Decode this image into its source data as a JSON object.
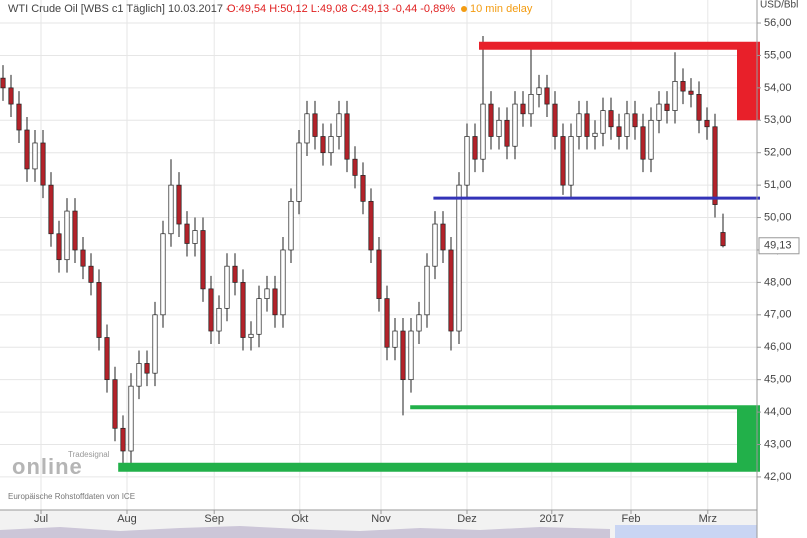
{
  "chart_data": {
    "type": "candlestick",
    "title": "WTI Crude Oil [WBS c1 Täglich] 10.03.2017 -",
    "subtitle": "O:49,54 H:50,12 L:49,08 C:49,13 -0,44 -0,89%",
    "delay": "10 min delay",
    "y_label": "USD/Bbl",
    "watermark": "online",
    "watermark_small": "Tradesignal",
    "source": "Europäische Rohstoffdaten von ICE",
    "up_color": "#ffffff",
    "down_color": "#b3222a",
    "grid": true,
    "categories": [
      null,
      null,
      null,
      null,
      null,
      null,
      null,
      null,
      null,
      null,
      null,
      null,
      null,
      null,
      null,
      null,
      null,
      null,
      null,
      null,
      null,
      null,
      null,
      null,
      null,
      null,
      null,
      null,
      null,
      null,
      null,
      null,
      null,
      null,
      null,
      null,
      null,
      null,
      null,
      null,
      null,
      null,
      null,
      null,
      null,
      null,
      null,
      null,
      null,
      null,
      null,
      null,
      null,
      null,
      null,
      null,
      null,
      null,
      null,
      null,
      null,
      null,
      null,
      null,
      null,
      null,
      null,
      null,
      null,
      null,
      null,
      null,
      null,
      null,
      null,
      null,
      null,
      null,
      null,
      null,
      null,
      null,
      null,
      null,
      null,
      null,
      null,
      null,
      null,
      null,
      null
    ],
    "candles": [
      [
        54.3,
        54.7,
        53.6,
        54.0
      ],
      [
        54.0,
        54.4,
        53.1,
        53.5
      ],
      [
        53.5,
        53.9,
        52.3,
        52.7
      ],
      [
        52.7,
        53.1,
        51.1,
        51.5
      ],
      [
        51.5,
        52.7,
        51.1,
        52.3
      ],
      [
        52.3,
        52.7,
        50.6,
        51.0
      ],
      [
        51.0,
        51.4,
        49.1,
        49.5
      ],
      [
        49.5,
        49.9,
        48.3,
        48.7
      ],
      [
        48.7,
        50.6,
        48.3,
        50.2
      ],
      [
        50.2,
        50.6,
        48.6,
        49.0
      ],
      [
        49.0,
        49.4,
        48.1,
        48.5
      ],
      [
        48.5,
        48.9,
        47.6,
        48.0
      ],
      [
        48.0,
        48.4,
        45.9,
        46.3
      ],
      [
        46.3,
        46.7,
        44.6,
        45.0
      ],
      [
        45.0,
        45.4,
        43.1,
        43.5
      ],
      [
        43.5,
        43.9,
        42.2,
        42.8
      ],
      [
        42.8,
        45.2,
        42.4,
        44.8
      ],
      [
        44.8,
        45.9,
        44.4,
        45.5
      ],
      [
        45.5,
        45.9,
        44.8,
        45.2
      ],
      [
        45.2,
        47.4,
        44.8,
        47.0
      ],
      [
        47.0,
        49.9,
        46.6,
        49.5
      ],
      [
        49.5,
        51.8,
        49.1,
        51.0
      ],
      [
        51.0,
        51.4,
        49.4,
        49.8
      ],
      [
        49.8,
        50.2,
        48.8,
        49.2
      ],
      [
        49.2,
        50.0,
        48.8,
        49.6
      ],
      [
        49.6,
        50.0,
        47.4,
        47.8
      ],
      [
        47.8,
        48.2,
        46.1,
        46.5
      ],
      [
        46.5,
        47.6,
        46.1,
        47.2
      ],
      [
        47.2,
        48.9,
        46.8,
        48.5
      ],
      [
        48.5,
        48.9,
        47.6,
        48.0
      ],
      [
        48.0,
        48.4,
        45.9,
        46.3
      ],
      [
        46.3,
        46.8,
        45.9,
        46.4
      ],
      [
        46.4,
        47.9,
        46.0,
        47.5
      ],
      [
        47.5,
        48.2,
        47.1,
        47.8
      ],
      [
        47.8,
        48.2,
        46.6,
        47.0
      ],
      [
        47.0,
        49.4,
        46.6,
        49.0
      ],
      [
        49.0,
        50.9,
        48.6,
        50.5
      ],
      [
        50.5,
        52.7,
        50.1,
        52.3
      ],
      [
        52.3,
        53.6,
        51.9,
        53.2
      ],
      [
        53.2,
        53.6,
        52.1,
        52.5
      ],
      [
        52.5,
        52.9,
        51.6,
        52.0
      ],
      [
        52.0,
        52.9,
        51.6,
        52.5
      ],
      [
        52.5,
        53.6,
        52.1,
        53.2
      ],
      [
        53.2,
        53.6,
        51.4,
        51.8
      ],
      [
        51.8,
        52.2,
        50.9,
        51.3
      ],
      [
        51.3,
        51.7,
        50.1,
        50.5
      ],
      [
        50.5,
        50.9,
        48.6,
        49.0
      ],
      [
        49.0,
        49.4,
        47.1,
        47.5
      ],
      [
        47.5,
        47.9,
        45.6,
        46.0
      ],
      [
        46.0,
        46.9,
        45.6,
        46.5
      ],
      [
        46.5,
        46.9,
        43.9,
        45.0
      ],
      [
        45.0,
        46.9,
        44.6,
        46.5
      ],
      [
        46.5,
        47.4,
        46.1,
        47.0
      ],
      [
        47.0,
        48.9,
        46.6,
        48.5
      ],
      [
        48.5,
        50.2,
        48.1,
        49.8
      ],
      [
        49.8,
        50.2,
        48.6,
        49.0
      ],
      [
        49.0,
        49.4,
        45.9,
        46.5
      ],
      [
        46.5,
        51.4,
        46.1,
        51.0
      ],
      [
        51.0,
        52.9,
        50.6,
        52.5
      ],
      [
        52.5,
        52.9,
        51.4,
        51.8
      ],
      [
        51.8,
        55.6,
        51.4,
        53.5
      ],
      [
        53.5,
        53.9,
        52.1,
        52.5
      ],
      [
        52.5,
        53.4,
        52.1,
        53.0
      ],
      [
        53.0,
        53.4,
        51.8,
        52.2
      ],
      [
        52.2,
        53.9,
        51.8,
        53.5
      ],
      [
        53.5,
        53.9,
        52.8,
        53.2
      ],
      [
        53.2,
        55.2,
        52.8,
        53.8
      ],
      [
        53.8,
        54.4,
        53.4,
        54.0
      ],
      [
        54.0,
        54.4,
        53.1,
        53.5
      ],
      [
        53.5,
        53.9,
        52.1,
        52.5
      ],
      [
        52.5,
        52.9,
        50.7,
        51.0
      ],
      [
        51.0,
        52.9,
        50.6,
        52.5
      ],
      [
        52.5,
        53.6,
        52.1,
        53.2
      ],
      [
        53.2,
        53.6,
        52.1,
        52.5
      ],
      [
        52.5,
        53.0,
        52.1,
        52.6
      ],
      [
        52.6,
        53.7,
        52.2,
        53.3
      ],
      [
        53.3,
        53.7,
        52.4,
        52.8
      ],
      [
        52.8,
        53.2,
        52.1,
        52.5
      ],
      [
        52.5,
        53.6,
        52.1,
        53.2
      ],
      [
        53.2,
        53.6,
        52.4,
        52.8
      ],
      [
        52.8,
        53.2,
        51.4,
        51.8
      ],
      [
        51.8,
        53.4,
        51.4,
        53.0
      ],
      [
        53.0,
        53.9,
        52.6,
        53.5
      ],
      [
        53.5,
        53.9,
        52.9,
        53.3
      ],
      [
        53.3,
        55.1,
        52.9,
        54.2
      ],
      [
        54.2,
        54.6,
        53.5,
        53.9
      ],
      [
        53.9,
        54.3,
        53.4,
        53.8
      ],
      [
        53.8,
        54.2,
        52.6,
        53.0
      ],
      [
        53.0,
        53.4,
        52.4,
        52.8
      ],
      [
        52.8,
        53.2,
        50.0,
        50.4
      ],
      [
        49.54,
        50.12,
        49.08,
        49.13
      ]
    ],
    "last_label": "49,13",
    "levels": [
      {
        "color": "#e8202a",
        "value": 55.3,
        "from": 59.5,
        "width": 8
      },
      {
        "color": "#3333b8",
        "value": 50.6,
        "from": 53.8,
        "width": 3
      },
      {
        "color": "#22b04a",
        "value": 44.15,
        "from": 50.9,
        "width": 4
      },
      {
        "color": "#22b04a",
        "value": 42.3,
        "from": 14.4,
        "width": 9
      }
    ],
    "boxes": [
      {
        "color": "#e8202a",
        "values": [
          55.3,
          53.0
        ]
      },
      {
        "color": "#22b04a",
        "values": [
          44.15,
          42.3
        ]
      }
    ],
    "xlim": [
      -0.375,
      94
    ],
    "xticks": [
      {
        "value": 4.75,
        "label": "Jul"
      },
      {
        "value": 15.5,
        "label": "Aug"
      },
      {
        "value": 26.4,
        "label": "Sep"
      },
      {
        "value": 37.1,
        "label": "Okt"
      },
      {
        "value": 47.25,
        "label": "Nov"
      },
      {
        "value": 58,
        "label": "Dez"
      },
      {
        "value": 68.6,
        "label": "2017"
      },
      {
        "value": 78.5,
        "label": "Feb"
      },
      {
        "value": 88.1,
        "label": "Mrz"
      }
    ],
    "ylim": [
      40.98,
      56.71
    ],
    "yticks": [
      {
        "value": 42,
        "label": "42,00"
      },
      {
        "value": 43,
        "label": "43,00"
      },
      {
        "value": 44,
        "label": "44,00"
      },
      {
        "value": 45,
        "label": "45,00"
      },
      {
        "value": 46,
        "label": "46,00"
      },
      {
        "value": 47,
        "label": "47,00"
      },
      {
        "value": 48,
        "label": "48,00"
      },
      {
        "value": 49,
        "label": "49,00"
      },
      {
        "value": 50,
        "label": "50,00"
      },
      {
        "value": 51,
        "label": "51,00"
      },
      {
        "value": 52,
        "label": "52,00"
      },
      {
        "value": 53,
        "label": "53,00"
      },
      {
        "value": 54,
        "label": "54,00"
      },
      {
        "value": 55,
        "label": "55,00"
      },
      {
        "value": 56,
        "label": "56,00"
      }
    ]
  }
}
